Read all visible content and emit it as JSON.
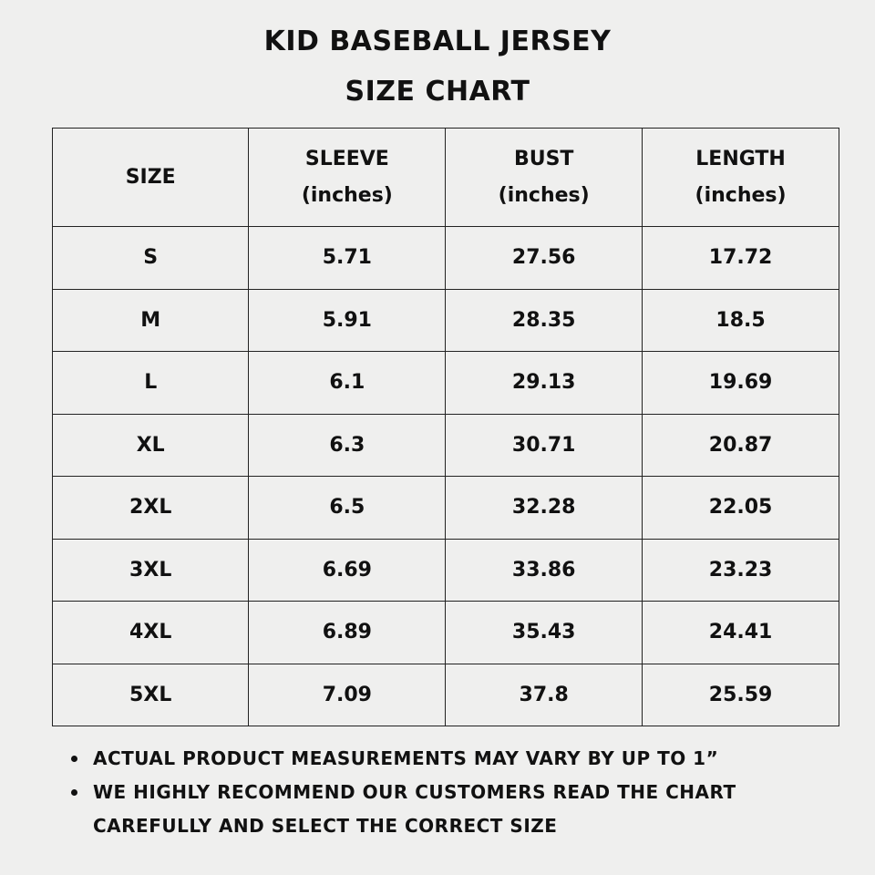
{
  "title": [
    "KID BASEBALL JERSEY",
    "SIZE CHART"
  ],
  "table": {
    "header": [
      [
        "SIZE"
      ],
      [
        "SLEEVE",
        "(inches)"
      ],
      [
        "BUST",
        "(inches)"
      ],
      [
        "LENGTH",
        "(inches)"
      ]
    ],
    "rows": [
      [
        "S",
        5.71,
        27.56,
        17.72
      ],
      [
        "M",
        5.91,
        28.35,
        18.5
      ],
      [
        "L",
        6.1,
        29.13,
        19.69
      ],
      [
        "XL",
        6.3,
        30.71,
        20.87
      ],
      [
        "2XL",
        6.5,
        32.28,
        22.05
      ],
      [
        "3XL",
        6.69,
        33.86,
        23.23
      ],
      [
        "4XL",
        6.89,
        35.43,
        24.41
      ],
      [
        "5XL",
        7.09,
        37.8,
        25.59
      ]
    ]
  },
  "notes": [
    "ACTUAL PRODUCT MEASUREMENTS MAY VARY BY UP TO 1”",
    "WE HIGHLY RECOMMEND OUR CUSTOMERS READ THE CHART CAREFULLY AND SELECT THE CORRECT SIZE"
  ]
}
